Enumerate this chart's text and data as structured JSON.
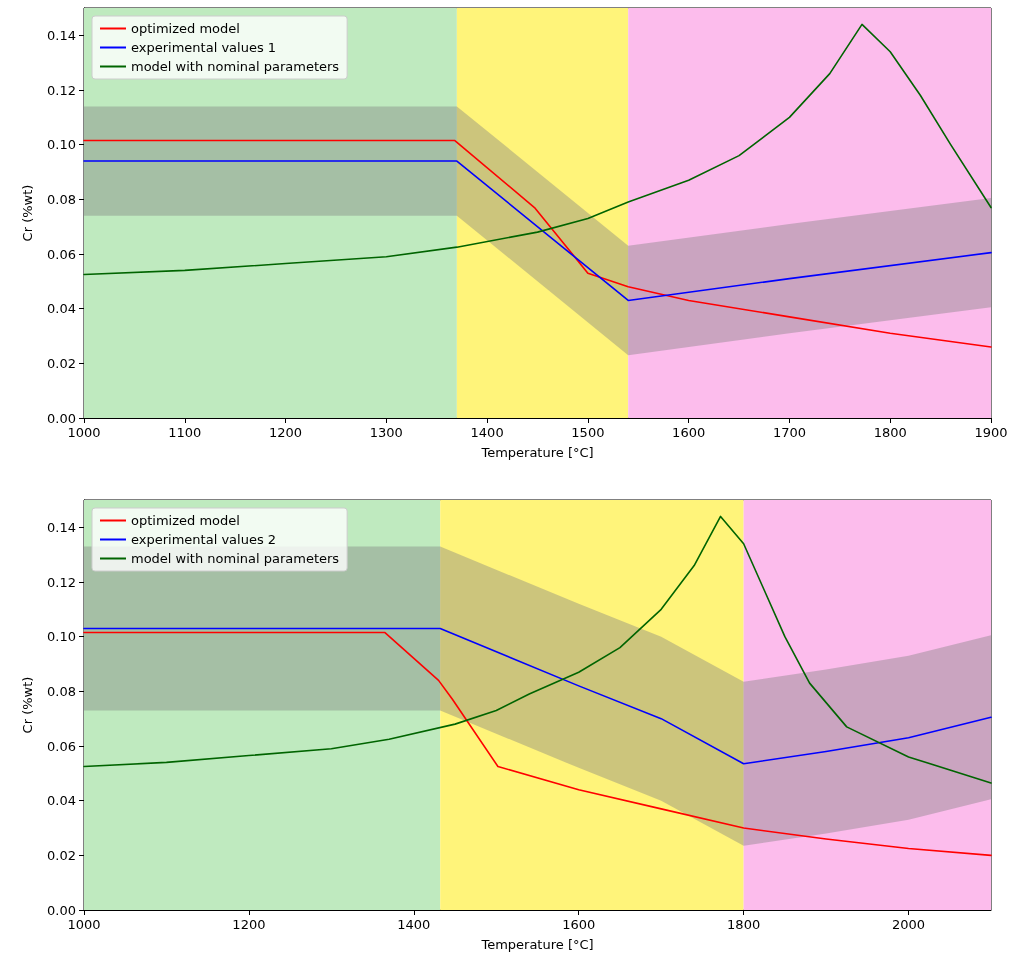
{
  "chart_data": [
    {
      "type": "line",
      "xlabel": "Temperature [°C]",
      "ylabel": "Cr (%wt)",
      "legend": "top left",
      "grid": false,
      "marker": "none",
      "line_style": "solid",
      "xlim": [
        1000,
        1900
      ],
      "xticks": [
        1000,
        1100,
        1200,
        1300,
        1400,
        1500,
        1600,
        1700,
        1800,
        1900
      ],
      "ylim": [
        0,
        0.15
      ],
      "yticks": [
        {
          "value": 0,
          "label": "0.00"
        },
        {
          "value": 0.02,
          "label": "0.02"
        },
        {
          "value": 0.04,
          "label": "0.04"
        },
        {
          "value": 0.06,
          "label": "0.06"
        },
        {
          "value": 0.08,
          "label": "0.08"
        },
        {
          "value": 0.1,
          "label": "0.10"
        },
        {
          "value": 0.12,
          "label": "0.12"
        },
        {
          "value": 0.14,
          "label": "0.14"
        }
      ],
      "bands": [
        {
          "axis": "x",
          "from": 1000,
          "to": 1370,
          "label": null,
          "color": "#bfeabf"
        },
        {
          "axis": "x",
          "from": 1370,
          "to": 1540,
          "label": null,
          "color": "#fff47a"
        },
        {
          "axis": "x",
          "from": 1540,
          "to": 1900,
          "label": null,
          "color": "#fcbcec"
        }
      ],
      "series": [
        {
          "name": "optimized model",
          "color": "#ff0000",
          "x": [
            1000,
            1368,
            1447,
            1500,
            1540,
            1600,
            1700,
            1800,
            1900
          ],
          "values": [
            0.1015,
            0.1015,
            0.077,
            0.053,
            0.048,
            0.043,
            0.037,
            0.031,
            0.026
          ]
        },
        {
          "name": "experimental values 1",
          "color": "#0000ff",
          "x": [
            1000,
            1370,
            1540,
            1700,
            1900
          ],
          "values": [
            0.094,
            0.094,
            0.043,
            0.051,
            0.0605
          ],
          "lower": [
            0.074,
            0.074,
            0.023,
            0.031,
            0.0405
          ],
          "upper": [
            0.114,
            0.114,
            0.063,
            0.071,
            0.0805
          ]
        },
        {
          "name": "model with nominal parameters",
          "color": "#006400",
          "x": [
            1000,
            1100,
            1200,
            1300,
            1370,
            1450,
            1500,
            1540,
            1600,
            1650,
            1700,
            1740,
            1772,
            1800,
            1830,
            1860,
            1900
          ],
          "values": [
            0.0525,
            0.054,
            0.0565,
            0.059,
            0.0625,
            0.068,
            0.073,
            0.079,
            0.087,
            0.096,
            0.11,
            0.126,
            0.144,
            0.134,
            0.118,
            0.1,
            0.077
          ]
        }
      ]
    },
    {
      "type": "line",
      "xlabel": "Temperature [°C]",
      "ylabel": "Cr (%wt)",
      "legend": "top left",
      "grid": false,
      "marker": "none",
      "line_style": "solid",
      "xlim": [
        1000,
        2100
      ],
      "xticks": [
        1000,
        1200,
        1400,
        1600,
        1800,
        2000
      ],
      "ylim": [
        0,
        0.15
      ],
      "yticks": [
        {
          "value": 0,
          "label": "0.00"
        },
        {
          "value": 0.02,
          "label": "0.02"
        },
        {
          "value": 0.04,
          "label": "0.04"
        },
        {
          "value": 0.06,
          "label": "0.06"
        },
        {
          "value": 0.08,
          "label": "0.08"
        },
        {
          "value": 0.1,
          "label": "0.10"
        },
        {
          "value": 0.12,
          "label": "0.12"
        },
        {
          "value": 0.14,
          "label": "0.14"
        }
      ],
      "bands": [
        {
          "axis": "x",
          "from": 1000,
          "to": 1432,
          "label": null,
          "color": "#bfeabf"
        },
        {
          "axis": "x",
          "from": 1432,
          "to": 1800,
          "label": null,
          "color": "#fff47a"
        },
        {
          "axis": "x",
          "from": 1800,
          "to": 2100,
          "label": null,
          "color": "#fcbcec"
        }
      ],
      "series": [
        {
          "name": "optimized model",
          "color": "#ff0000",
          "x": [
            1000,
            1365,
            1430,
            1447,
            1502,
            1600,
            1700,
            1800,
            1900,
            2000,
            2100
          ],
          "values": [
            0.1015,
            0.1015,
            0.084,
            0.077,
            0.0525,
            0.044,
            0.037,
            0.03,
            0.026,
            0.0225,
            0.02
          ]
        },
        {
          "name": "experimental values 2",
          "color": "#0000ff",
          "x": [
            1000,
            1432,
            1600,
            1700,
            1800,
            1900,
            2000,
            2100
          ],
          "values": [
            0.103,
            0.103,
            0.082,
            0.07,
            0.0535,
            0.058,
            0.063,
            0.0705
          ],
          "lower": [
            0.073,
            0.073,
            0.052,
            0.04,
            0.0235,
            0.028,
            0.033,
            0.0405
          ],
          "upper": [
            0.133,
            0.133,
            0.112,
            0.1,
            0.0835,
            0.088,
            0.093,
            0.1005
          ]
        },
        {
          "name": "model with nominal parameters",
          "color": "#006400",
          "x": [
            1000,
            1100,
            1200,
            1300,
            1370,
            1450,
            1500,
            1540,
            1600,
            1650,
            1700,
            1740,
            1772,
            1800,
            1850,
            1880,
            1925,
            2000,
            2100
          ],
          "values": [
            0.0525,
            0.054,
            0.0565,
            0.059,
            0.0625,
            0.068,
            0.073,
            0.079,
            0.087,
            0.096,
            0.11,
            0.126,
            0.144,
            0.134,
            0.1,
            0.083,
            0.067,
            0.056,
            0.0465
          ]
        }
      ]
    }
  ]
}
